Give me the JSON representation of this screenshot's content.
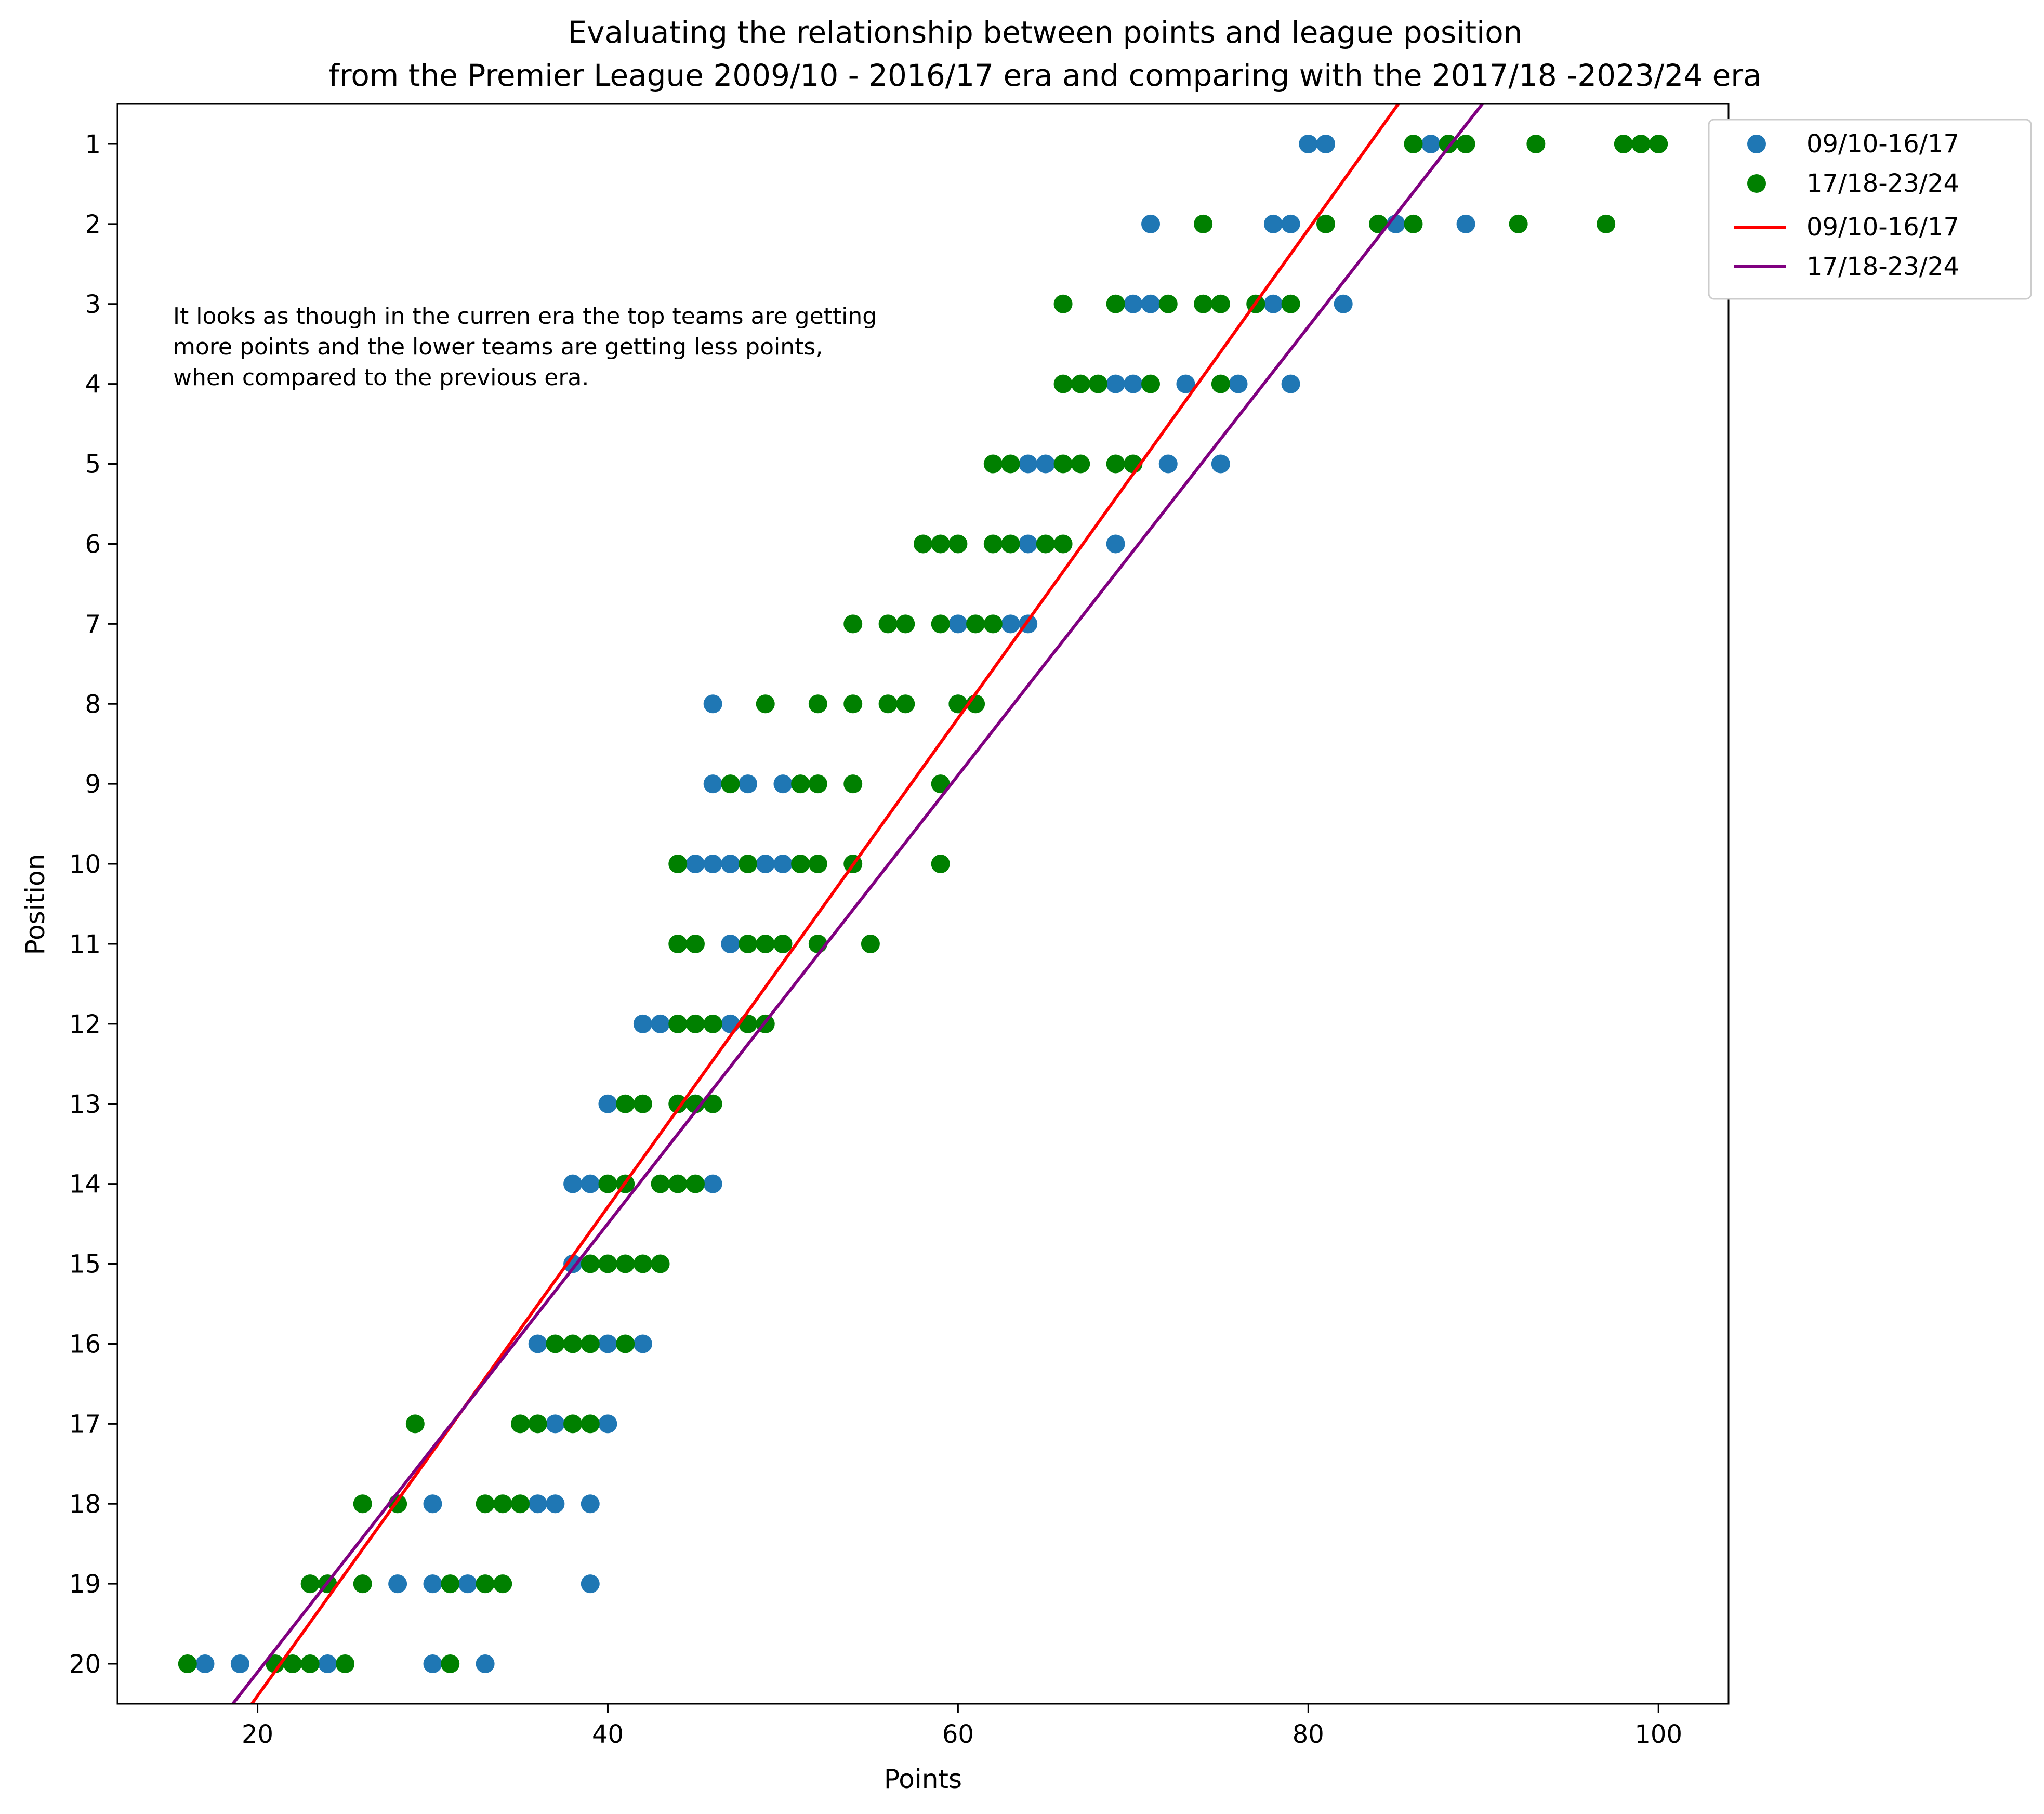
{
  "chart_data": {
    "type": "scatter",
    "title": "Evaluating the relationship between points and league position",
    "subtitle": "from the Premier League 2009/10 - 2016/17 era and comparing with the 2017/18 -2023/24 era",
    "xlabel": "Points",
    "ylabel": "Position",
    "xlim": [
      12,
      104
    ],
    "ylim": [
      20.5,
      0.5
    ],
    "y_inverted": true,
    "x_ticks": [
      20,
      40,
      60,
      80,
      100
    ],
    "y_ticks": [
      1,
      2,
      3,
      4,
      5,
      6,
      7,
      8,
      9,
      10,
      11,
      12,
      13,
      14,
      15,
      16,
      17,
      18,
      19,
      20
    ],
    "grid": false,
    "legend_position": "outside-top-right",
    "annotation": {
      "lines": [
        "It looks as though in the curren era the top teams are getting",
        "more points and the lower teams are getting less points,",
        "when compared to the previous era."
      ],
      "color": "#e6005c"
    },
    "series": [
      {
        "name": "09/10-16/17",
        "kind": "scatter",
        "color": "#1f77b4",
        "points": [
          [
            80,
            1
          ],
          [
            81,
            1
          ],
          [
            87,
            1
          ],
          [
            71,
            2
          ],
          [
            78,
            2
          ],
          [
            79,
            2
          ],
          [
            85,
            2
          ],
          [
            89,
            2
          ],
          [
            70,
            3
          ],
          [
            71,
            3
          ],
          [
            78,
            3
          ],
          [
            82,
            3
          ],
          [
            69,
            4
          ],
          [
            70,
            4
          ],
          [
            73,
            4
          ],
          [
            76,
            4
          ],
          [
            79,
            4
          ],
          [
            64,
            5
          ],
          [
            65,
            5
          ],
          [
            72,
            5
          ],
          [
            75,
            5
          ],
          [
            64,
            6
          ],
          [
            69,
            6
          ],
          [
            60,
            7
          ],
          [
            63,
            7
          ],
          [
            64,
            7
          ],
          [
            46,
            8
          ],
          [
            60,
            8
          ],
          [
            46,
            9
          ],
          [
            48,
            9
          ],
          [
            50,
            9
          ],
          [
            45,
            10
          ],
          [
            46,
            10
          ],
          [
            47,
            10
          ],
          [
            49,
            10
          ],
          [
            50,
            10
          ],
          [
            47,
            11
          ],
          [
            50,
            11
          ],
          [
            42,
            12
          ],
          [
            43,
            12
          ],
          [
            47,
            12
          ],
          [
            40,
            13
          ],
          [
            45,
            13
          ],
          [
            38,
            14
          ],
          [
            39,
            14
          ],
          [
            46,
            14
          ],
          [
            38,
            15
          ],
          [
            36,
            16
          ],
          [
            40,
            16
          ],
          [
            42,
            16
          ],
          [
            37,
            17
          ],
          [
            40,
            17
          ],
          [
            30,
            18
          ],
          [
            36,
            18
          ],
          [
            37,
            18
          ],
          [
            39,
            18
          ],
          [
            28,
            19
          ],
          [
            30,
            19
          ],
          [
            32,
            19
          ],
          [
            39,
            19
          ],
          [
            17,
            20
          ],
          [
            19,
            20
          ],
          [
            24,
            20
          ],
          [
            30,
            20
          ],
          [
            33,
            20
          ]
        ]
      },
      {
        "name": "17/18-23/24",
        "kind": "scatter",
        "color": "#008000",
        "points": [
          [
            86,
            1
          ],
          [
            88,
            1
          ],
          [
            89,
            1
          ],
          [
            93,
            1
          ],
          [
            98,
            1
          ],
          [
            99,
            1
          ],
          [
            100,
            1
          ],
          [
            74,
            2
          ],
          [
            81,
            2
          ],
          [
            84,
            2
          ],
          [
            86,
            2
          ],
          [
            92,
            2
          ],
          [
            97,
            2
          ],
          [
            66,
            3
          ],
          [
            69,
            3
          ],
          [
            72,
            3
          ],
          [
            74,
            3
          ],
          [
            75,
            3
          ],
          [
            77,
            3
          ],
          [
            79,
            3
          ],
          [
            66,
            4
          ],
          [
            67,
            4
          ],
          [
            68,
            4
          ],
          [
            71,
            4
          ],
          [
            75,
            4
          ],
          [
            62,
            5
          ],
          [
            63,
            5
          ],
          [
            66,
            5
          ],
          [
            67,
            5
          ],
          [
            69,
            5
          ],
          [
            70,
            5
          ],
          [
            58,
            6
          ],
          [
            59,
            6
          ],
          [
            60,
            6
          ],
          [
            62,
            6
          ],
          [
            63,
            6
          ],
          [
            65,
            6
          ],
          [
            66,
            6
          ],
          [
            54,
            7
          ],
          [
            56,
            7
          ],
          [
            57,
            7
          ],
          [
            59,
            7
          ],
          [
            61,
            7
          ],
          [
            62,
            7
          ],
          [
            49,
            8
          ],
          [
            52,
            8
          ],
          [
            54,
            8
          ],
          [
            56,
            8
          ],
          [
            57,
            8
          ],
          [
            60,
            8
          ],
          [
            61,
            8
          ],
          [
            47,
            9
          ],
          [
            51,
            9
          ],
          [
            52,
            9
          ],
          [
            54,
            9
          ],
          [
            59,
            9
          ],
          [
            44,
            10
          ],
          [
            48,
            10
          ],
          [
            51,
            10
          ],
          [
            52,
            10
          ],
          [
            54,
            10
          ],
          [
            59,
            10
          ],
          [
            44,
            11
          ],
          [
            45,
            11
          ],
          [
            48,
            11
          ],
          [
            49,
            11
          ],
          [
            50,
            11
          ],
          [
            52,
            11
          ],
          [
            55,
            11
          ],
          [
            44,
            12
          ],
          [
            45,
            12
          ],
          [
            46,
            12
          ],
          [
            48,
            12
          ],
          [
            49,
            12
          ],
          [
            41,
            13
          ],
          [
            42,
            13
          ],
          [
            44,
            13
          ],
          [
            45,
            13
          ],
          [
            46,
            13
          ],
          [
            40,
            14
          ],
          [
            41,
            14
          ],
          [
            43,
            14
          ],
          [
            44,
            14
          ],
          [
            45,
            14
          ],
          [
            39,
            15
          ],
          [
            40,
            15
          ],
          [
            41,
            15
          ],
          [
            42,
            15
          ],
          [
            43,
            15
          ],
          [
            37,
            16
          ],
          [
            38,
            16
          ],
          [
            39,
            16
          ],
          [
            41,
            16
          ],
          [
            29,
            17
          ],
          [
            35,
            17
          ],
          [
            36,
            17
          ],
          [
            38,
            17
          ],
          [
            39,
            17
          ],
          [
            26,
            18
          ],
          [
            28,
            18
          ],
          [
            33,
            18
          ],
          [
            34,
            18
          ],
          [
            35,
            18
          ],
          [
            23,
            19
          ],
          [
            24,
            19
          ],
          [
            26,
            19
          ],
          [
            31,
            19
          ],
          [
            33,
            19
          ],
          [
            34,
            19
          ],
          [
            16,
            20
          ],
          [
            21,
            20
          ],
          [
            22,
            20
          ],
          [
            23,
            20
          ],
          [
            25,
            20
          ],
          [
            31,
            20
          ]
        ]
      },
      {
        "name": "09/10-16/17",
        "kind": "line",
        "color": "#ff0000",
        "fit_slope": -0.3055,
        "fit_intercept": 26.51
      },
      {
        "name": "17/18-23/24",
        "kind": "line",
        "color": "#800080",
        "fit_slope": -0.2803,
        "fit_intercept": 25.71
      }
    ]
  }
}
